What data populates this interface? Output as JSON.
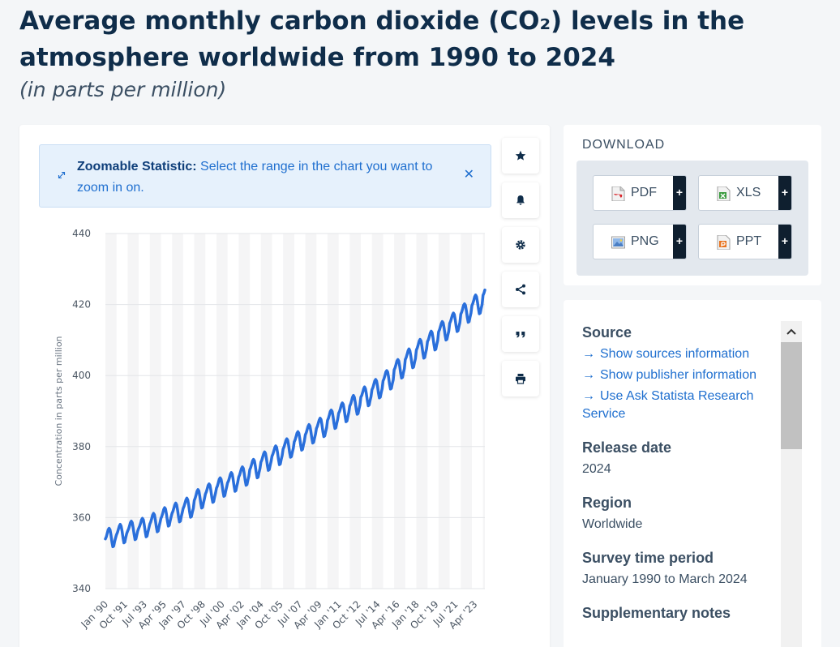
{
  "header": {
    "title": "Average monthly carbon dioxide (CO₂) levels in the atmosphere worldwide from 1990 to 2024",
    "subtitle": "(in parts per million)"
  },
  "zoom_notice": {
    "label": "Zoomable Statistic:",
    "text": "Select the range in the chart you want to zoom in on."
  },
  "chart_data": {
    "type": "line",
    "title": "",
    "xlabel": "",
    "ylabel": "Concentration in parts per million",
    "ylim": [
      340,
      440
    ],
    "yticks": [
      340,
      360,
      380,
      400,
      420,
      440
    ],
    "xtick_labels": [
      "Jan '90",
      "Oct '91",
      "Jul '93",
      "Apr '95",
      "Jan '97",
      "Oct '98",
      "Jul '00",
      "Apr '02",
      "Jan '04",
      "Oct '05",
      "Jul '07",
      "Apr '09",
      "Jan '11",
      "Oct '12",
      "Jul '14",
      "Apr '16",
      "Jan '18",
      "Oct '19",
      "Jul '21",
      "Apr '23"
    ],
    "x_range": [
      "Jan '90",
      "Mar '24"
    ],
    "grid": true,
    "color": "#2a6fdb",
    "series": [
      {
        "values": [
          354.0,
          354.6,
          355.6,
          356.6,
          357.0,
          356.6,
          355.1,
          353.2,
          351.8,
          352.0,
          353.3,
          354.3,
          355.2,
          355.8,
          356.7,
          357.6,
          358.1,
          357.6,
          356.2,
          354.3,
          352.9,
          353.1,
          354.4,
          355.5,
          356.2,
          356.8,
          357.6,
          358.6,
          359.0,
          358.6,
          357.1,
          355.3,
          353.8,
          354.0,
          355.2,
          356.3,
          357.0,
          357.6,
          358.4,
          359.4,
          359.8,
          359.4,
          357.9,
          356.1,
          354.6,
          354.8,
          356.0,
          357.1,
          358.2,
          358.8,
          359.7,
          360.7,
          361.2,
          360.8,
          359.3,
          357.4,
          356.0,
          356.2,
          357.5,
          358.6,
          359.8,
          360.4,
          361.3,
          362.3,
          362.8,
          362.4,
          360.9,
          359.0,
          357.6,
          357.8,
          359.1,
          360.2,
          361.2,
          361.8,
          362.7,
          363.6,
          364.1,
          363.6,
          362.1,
          360.2,
          358.8,
          359.0,
          360.3,
          361.4,
          362.6,
          363.2,
          364.1,
          365.0,
          365.5,
          365.0,
          363.5,
          361.6,
          360.1,
          360.3,
          361.6,
          362.6,
          364.8,
          365.5,
          366.4,
          367.4,
          367.9,
          367.5,
          366.0,
          364.1,
          362.7,
          362.9,
          364.2,
          365.3,
          366.6,
          367.2,
          368.1,
          369.1,
          369.5,
          369.1,
          367.6,
          365.7,
          364.3,
          364.5,
          365.8,
          366.9,
          368.3,
          368.9,
          369.8,
          370.8,
          371.2,
          370.8,
          369.3,
          367.4,
          366.0,
          366.2,
          367.5,
          368.6,
          369.8,
          370.3,
          371.2,
          372.2,
          372.7,
          372.3,
          370.8,
          368.9,
          367.4,
          367.6,
          368.9,
          370.0,
          371.4,
          372.0,
          372.9,
          373.8,
          374.3,
          373.9,
          372.4,
          370.5,
          369.1,
          369.3,
          370.6,
          371.6,
          373.5,
          374.1,
          375.0,
          376.0,
          376.4,
          376.0,
          374.5,
          372.6,
          371.2,
          371.4,
          372.7,
          373.8,
          375.6,
          376.2,
          377.1,
          378.0,
          378.5,
          378.1,
          376.6,
          374.7,
          373.3,
          373.5,
          374.7,
          375.8,
          377.3,
          377.9,
          378.8,
          379.7,
          380.2,
          379.8,
          378.3,
          376.4,
          374.9,
          375.1,
          376.4,
          377.5,
          379.3,
          379.9,
          380.8,
          381.7,
          382.2,
          381.8,
          380.3,
          378.4,
          377.0,
          377.2,
          378.4,
          379.5,
          381.3,
          381.9,
          382.8,
          383.8,
          384.2,
          383.8,
          382.3,
          380.4,
          379.0,
          379.2,
          380.5,
          381.6,
          383.3,
          383.9,
          384.8,
          385.7,
          386.2,
          385.8,
          384.3,
          382.4,
          381.0,
          381.2,
          382.4,
          383.5,
          385.1,
          385.7,
          386.6,
          387.5,
          388.0,
          387.6,
          386.1,
          384.2,
          382.8,
          383.0,
          384.2,
          385.3,
          387.4,
          388.0,
          388.9,
          389.9,
          390.3,
          389.9,
          388.4,
          386.5,
          385.1,
          385.3,
          386.6,
          387.7,
          389.4,
          389.9,
          390.8,
          391.8,
          392.3,
          391.9,
          390.4,
          388.5,
          387.0,
          387.2,
          388.5,
          389.6,
          391.4,
          392.0,
          392.9,
          393.9,
          394.4,
          393.9,
          392.4,
          390.5,
          389.1,
          389.3,
          390.6,
          391.7,
          393.9,
          394.4,
          395.3,
          396.3,
          396.8,
          396.3,
          394.8,
          393.0,
          391.5,
          391.7,
          393.0,
          394.1,
          396.0,
          396.6,
          397.5,
          398.5,
          398.9,
          398.5,
          397.0,
          395.1,
          393.7,
          393.9,
          395.2,
          396.3,
          398.5,
          399.1,
          400.0,
          401.0,
          401.4,
          401.0,
          399.5,
          397.6,
          396.2,
          396.4,
          397.7,
          398.8,
          401.6,
          402.2,
          403.1,
          404.1,
          404.5,
          404.1,
          402.6,
          400.7,
          399.3,
          399.5,
          400.8,
          401.9,
          404.5,
          405.1,
          406.0,
          407.0,
          407.5,
          407.0,
          405.5,
          403.6,
          402.2,
          402.4,
          403.7,
          404.8,
          407.2,
          407.8,
          408.7,
          409.7,
          410.2,
          409.8,
          408.3,
          406.4,
          404.9,
          405.1,
          406.4,
          407.5,
          409.6,
          410.1,
          411.0,
          412.0,
          412.5,
          412.1,
          410.6,
          408.7,
          407.2,
          407.4,
          408.7,
          409.8,
          412.3,
          412.9,
          413.8,
          414.7,
          415.2,
          414.8,
          413.3,
          411.4,
          410.0,
          410.2,
          411.4,
          412.5,
          414.7,
          415.3,
          416.2,
          417.1,
          417.6,
          417.2,
          415.7,
          413.8,
          412.4,
          412.6,
          413.8,
          414.9,
          417.3,
          417.9,
          418.8,
          419.8,
          420.2,
          419.8,
          418.3,
          416.4,
          415.0,
          415.2,
          416.5,
          417.6,
          419.7,
          420.3,
          421.2,
          422.2,
          422.7,
          422.2,
          420.7,
          418.9,
          417.4,
          417.6,
          418.9,
          420.0,
          422.6,
          423.2,
          424.1
        ]
      }
    ]
  },
  "tools": {
    "icons": [
      "star-icon",
      "bell-icon",
      "gear-icon",
      "share-icon",
      "quote-icon",
      "print-icon"
    ]
  },
  "download": {
    "title": "DOWNLOAD",
    "buttons": [
      {
        "label": "PDF",
        "plus": "+",
        "icon": "pdf-file-icon",
        "color": "#d9262c"
      },
      {
        "label": "XLS",
        "plus": "+",
        "icon": "xls-file-icon",
        "color": "#3a9b3f"
      },
      {
        "label": "PNG",
        "plus": "+",
        "icon": "png-file-icon",
        "color": "#4b7fc4"
      },
      {
        "label": "PPT",
        "plus": "+",
        "icon": "ppt-file-icon",
        "color": "#e8731f"
      }
    ]
  },
  "info": {
    "source": {
      "heading": "Source",
      "links": [
        "Show sources information",
        "Show publisher information",
        "Use Ask Statista Research Service"
      ]
    },
    "release_date": {
      "heading": "Release date",
      "value": "2024"
    },
    "region": {
      "heading": "Region",
      "value": "Worldwide"
    },
    "survey_period": {
      "heading": "Survey time period",
      "value": "January 1990 to March 2024"
    },
    "supplementary": {
      "heading": "Supplementary notes"
    }
  },
  "colors": {
    "accent": "#1f6fcf",
    "line": "#2a6fdb",
    "title": "#0f2d4a"
  }
}
